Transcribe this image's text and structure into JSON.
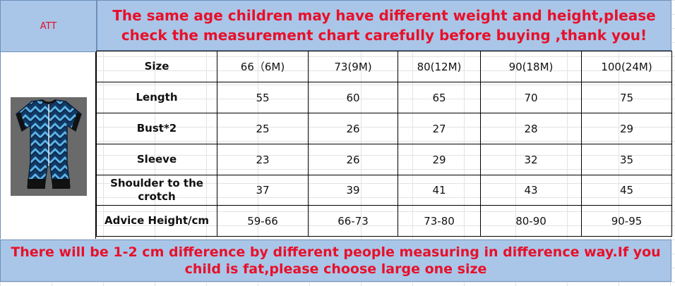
{
  "header": {
    "att": "ATT",
    "notice": "The same age children may have different weight and height,please check the measurement chart carefully before buying ,thank you!"
  },
  "product": {
    "image": "blue-zigzag-baby-romper"
  },
  "size_chart": {
    "header_label": "Size",
    "sizes": [
      "66（6M)",
      "73(9M)",
      "80(12M)",
      "90(18M)",
      "100(24M)"
    ],
    "rows": [
      {
        "label": "Length",
        "values": [
          "55",
          "60",
          "65",
          "70",
          "75"
        ]
      },
      {
        "label": "Bust*2",
        "values": [
          "25",
          "26",
          "27",
          "28",
          "29"
        ]
      },
      {
        "label": "Sleeve",
        "values": [
          "23",
          "26",
          "29",
          "32",
          "35"
        ]
      },
      {
        "label": "Shoulder to the crotch",
        "values": [
          "37",
          "39",
          "41",
          "43",
          "45"
        ]
      },
      {
        "label": "Advice Height/cm",
        "values": [
          "59-66",
          "66-73",
          "73-80",
          "80-90",
          "90-95"
        ]
      }
    ]
  },
  "footer": {
    "note": "There will be 1-2 cm difference by different people measuring in difference way.If you child is fat,please choose large one size"
  },
  "colors": {
    "banner": "#a9c6e8",
    "notice_text": "#e8102a",
    "pattern_dark": "#0e2d52",
    "pattern_light": "#4ea7dc"
  }
}
